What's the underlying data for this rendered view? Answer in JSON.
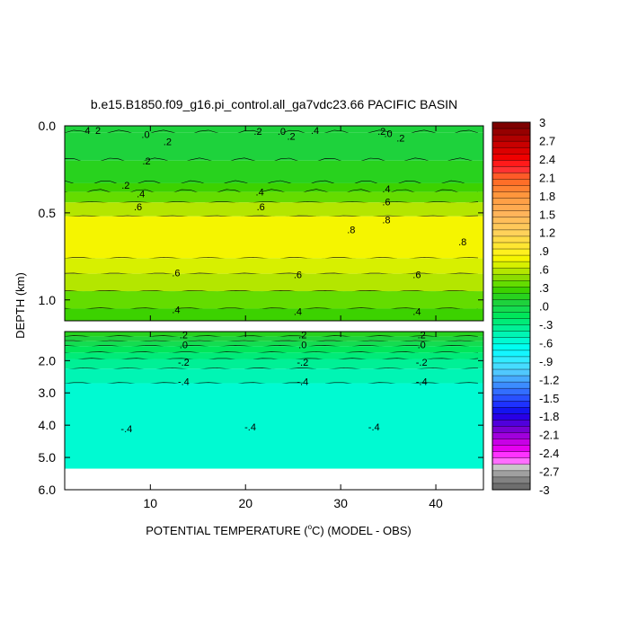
{
  "chart_data": {
    "type": "heatmap",
    "title": "b.e15.B1850.f09_g16.pi_control.all_ga7vdc23.66 PACIFIC BASIN",
    "xlabel_main": "POTENTIAL TEMPERATURE (",
    "xlabel_deg": "o",
    "xlabel_rest": "C) (MODEL - OBS)",
    "ylabel": "DEPTH (km)",
    "xlim": [
      1,
      45
    ],
    "xticks": [
      10,
      20,
      30,
      40
    ],
    "xtick_labels": [
      "10",
      "20",
      "30",
      "40"
    ],
    "panels": [
      {
        "name": "upper",
        "ylim": [
          0.0,
          1.12
        ],
        "yticks": [
          0.0,
          0.5,
          1.0
        ],
        "ytick_labels": [
          "0.0",
          "0.5",
          "1.0"
        ],
        "bands": [
          {
            "d0": 0.0,
            "d1": 0.04,
            "v": 0.1
          },
          {
            "d0": 0.04,
            "d1": 0.2,
            "v": 0.15
          },
          {
            "d0": 0.2,
            "d1": 0.33,
            "v": 0.2
          },
          {
            "d0": 0.33,
            "d1": 0.38,
            "v": 0.35
          },
          {
            "d0": 0.38,
            "d1": 0.44,
            "v": 0.5
          },
          {
            "d0": 0.44,
            "d1": 0.52,
            "v": 0.65
          },
          {
            "d0": 0.52,
            "d1": 0.76,
            "v": 0.82
          },
          {
            "d0": 0.76,
            "d1": 0.85,
            "v": 0.75
          },
          {
            "d0": 0.85,
            "d1": 0.95,
            "v": 0.6
          },
          {
            "d0": 0.95,
            "d1": 1.05,
            "v": 0.48
          },
          {
            "d0": 1.05,
            "d1": 1.12,
            "v": 0.38
          }
        ],
        "contour_labels": [
          {
            "x": 4.5,
            "d": 0.025,
            "t": "2"
          },
          {
            "x": 3.4,
            "d": 0.025,
            "t": "4"
          },
          {
            "x": 9.5,
            "d": 0.05,
            "t": ".0"
          },
          {
            "x": 11.8,
            "d": 0.09,
            "t": ".2"
          },
          {
            "x": 21.3,
            "d": 0.03,
            "t": ".2"
          },
          {
            "x": 23.8,
            "d": 0.03,
            "t": ".0"
          },
          {
            "x": 24.8,
            "d": 0.06,
            "t": ".2"
          },
          {
            "x": 27.3,
            "d": 0.025,
            "t": ".4"
          },
          {
            "x": 34.3,
            "d": 0.03,
            "t": ".2"
          },
          {
            "x": 35,
            "d": 0.045,
            "t": ".0"
          },
          {
            "x": 36.3,
            "d": 0.07,
            "t": ".2"
          },
          {
            "x": 9.6,
            "d": 0.2,
            "t": ".2"
          },
          {
            "x": 7.4,
            "d": 0.34,
            "t": ".2"
          },
          {
            "x": 9,
            "d": 0.39,
            "t": ".4"
          },
          {
            "x": 21.5,
            "d": 0.38,
            "t": ".4"
          },
          {
            "x": 34.8,
            "d": 0.36,
            "t": ".4"
          },
          {
            "x": 8.7,
            "d": 0.465,
            "t": ".6"
          },
          {
            "x": 21.6,
            "d": 0.465,
            "t": ".6"
          },
          {
            "x": 34.8,
            "d": 0.435,
            "t": ".6"
          },
          {
            "x": 34.8,
            "d": 0.54,
            "t": ".8"
          },
          {
            "x": 31.1,
            "d": 0.595,
            "t": ".8"
          },
          {
            "x": 42.8,
            "d": 0.665,
            "t": ".8"
          },
          {
            "x": 12.7,
            "d": 0.845,
            "t": ".6"
          },
          {
            "x": 25.5,
            "d": 0.855,
            "t": ".6"
          },
          {
            "x": 38,
            "d": 0.855,
            "t": ".6"
          },
          {
            "x": 12.7,
            "d": 1.055,
            "t": ".4"
          },
          {
            "x": 25.5,
            "d": 1.065,
            "t": ".4"
          },
          {
            "x": 38,
            "d": 1.065,
            "t": ".4"
          }
        ]
      },
      {
        "name": "lower",
        "ylim": [
          1.1,
          6.0
        ],
        "yticks": [
          2.0,
          3.0,
          4.0,
          5.0,
          6.0
        ],
        "ytick_labels": [
          "2.0",
          "3.0",
          "4.0",
          "5.0",
          "6.0"
        ],
        "bands": [
          {
            "d0": 1.1,
            "d1": 1.25,
            "v": 0.25
          },
          {
            "d0": 1.25,
            "d1": 1.4,
            "v": 0.15
          },
          {
            "d0": 1.4,
            "d1": 1.55,
            "v": 0.05
          },
          {
            "d0": 1.55,
            "d1": 1.75,
            "v": -0.05
          },
          {
            "d0": 1.75,
            "d1": 1.95,
            "v": -0.12
          },
          {
            "d0": 1.95,
            "d1": 2.25,
            "v": -0.25
          },
          {
            "d0": 2.25,
            "d1": 2.7,
            "v": -0.32
          },
          {
            "d0": 2.7,
            "d1": 5.35,
            "v": -0.45
          }
        ],
        "nodata_below": 5.35,
        "contour_labels": [
          {
            "x": 13.5,
            "d": 1.2,
            "t": ".2"
          },
          {
            "x": 26,
            "d": 1.2,
            "t": ".2"
          },
          {
            "x": 38.5,
            "d": 1.2,
            "t": ".2"
          },
          {
            "x": 13.5,
            "d": 1.5,
            "t": ".0"
          },
          {
            "x": 26,
            "d": 1.5,
            "t": ".0"
          },
          {
            "x": 38.5,
            "d": 1.5,
            "t": ".0"
          },
          {
            "x": 13.5,
            "d": 2.05,
            "t": "-.2"
          },
          {
            "x": 26,
            "d": 2.05,
            "t": "-.2"
          },
          {
            "x": 38.5,
            "d": 2.05,
            "t": "-.2"
          },
          {
            "x": 13.5,
            "d": 2.65,
            "t": "-.4"
          },
          {
            "x": 26,
            "d": 2.65,
            "t": "-.4"
          },
          {
            "x": 38.5,
            "d": 2.65,
            "t": "-.4"
          },
          {
            "x": 7.5,
            "d": 4.1,
            "t": "-.4"
          },
          {
            "x": 20.5,
            "d": 4.05,
            "t": "-.4"
          },
          {
            "x": 33.5,
            "d": 4.05,
            "t": "-.4"
          }
        ]
      }
    ],
    "colorbar": {
      "labels": [
        "3",
        "2.7",
        "2.4",
        "2.1",
        "1.8",
        "1.5",
        "1.2",
        ".9",
        ".6",
        ".3",
        ".0",
        "-.3",
        "-.6",
        "-.9",
        "-1.2",
        "-1.5",
        "-1.8",
        "-2.1",
        "-2.4",
        "-2.7",
        "-3"
      ],
      "colors": [
        "#7d0000",
        "#960000",
        "#b00000",
        "#c80000",
        "#dc0000",
        "#f00000",
        "#ff1a1a",
        "#ff3232",
        "#ff5a28",
        "#ff6e28",
        "#ff8232",
        "#ff963c",
        "#ffa046",
        "#ffaa50",
        "#ffb45a",
        "#ffbe5a",
        "#ffc85a",
        "#ffd25a",
        "#ffdc46",
        "#ffe632",
        "#fff01e",
        "#f5f500",
        "#d7f000",
        "#b4e600",
        "#8cdc00",
        "#64dc00",
        "#3cd200",
        "#28d21e",
        "#1ed23c",
        "#14dc50",
        "#00e65a",
        "#00eb78",
        "#00f096",
        "#00f5b4",
        "#00fad2",
        "#00fff0",
        "#14f5ff",
        "#32ebff",
        "#46dcff",
        "#50c8ff",
        "#46aaff",
        "#3c8cff",
        "#326eff",
        "#2850ff",
        "#1e32ff",
        "#1414f0",
        "#2800e6",
        "#5000dc",
        "#7800d2",
        "#a000dc",
        "#c800e6",
        "#e600f0",
        "#ff32ff",
        "#ff6eff",
        "#c8c8c8",
        "#a0a0a0",
        "#828282",
        "#6e6e6e"
      ]
    }
  }
}
